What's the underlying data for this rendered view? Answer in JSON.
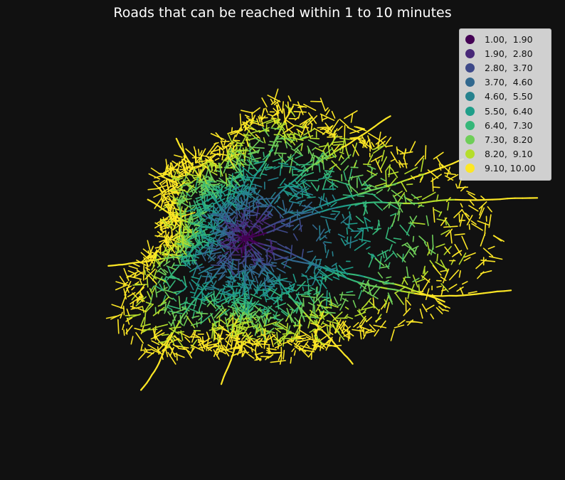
{
  "title": "Roads that can be reached within 1 to 10 minutes",
  "legend": {
    "items": [
      {
        "label": "1.00,  1.90",
        "color": "#440154"
      },
      {
        "label": "1.90,  2.80",
        "color": "#482878"
      },
      {
        "label": "2.80,  3.70",
        "color": "#3e4989"
      },
      {
        "label": "3.70,  4.60",
        "color": "#31688e"
      },
      {
        "label": "4.60,  5.50",
        "color": "#26828e"
      },
      {
        "label": "5.50,  6.40",
        "color": "#1f9e89"
      },
      {
        "label": "6.40,  7.30",
        "color": "#35b779"
      },
      {
        "label": "7.30,  8.20",
        "color": "#6ece58"
      },
      {
        "label": "8.20,  9.10",
        "color": "#b5de2b"
      },
      {
        "label": "9.10, 10.00",
        "color": "#fde725"
      }
    ]
  },
  "background_color": "#111111"
}
